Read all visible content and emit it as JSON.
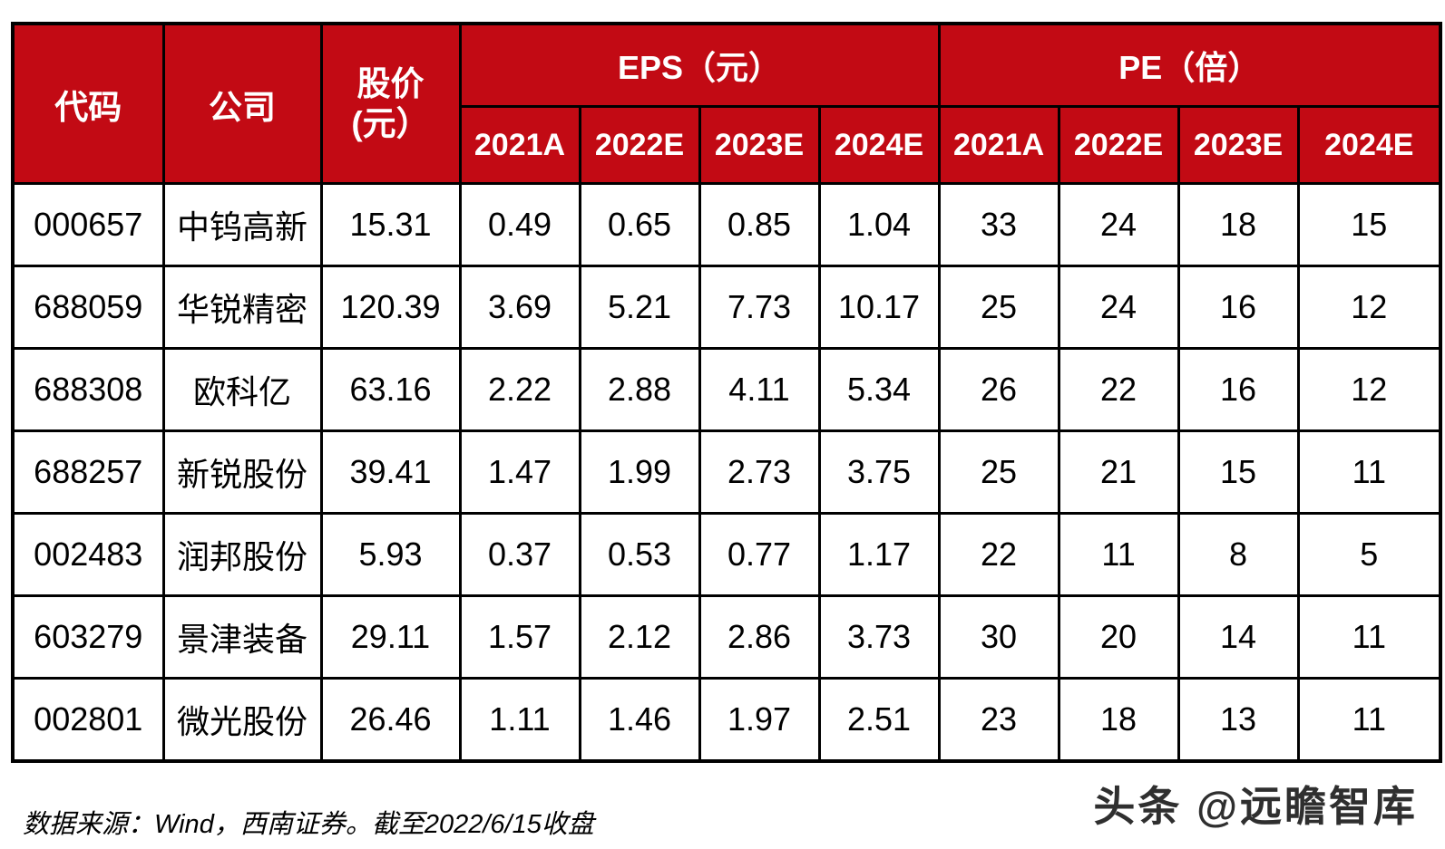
{
  "colors": {
    "header_bg": "#c20a14",
    "header_text": "#ffffff",
    "border": "#000000",
    "body_text": "#000000"
  },
  "table": {
    "headers": {
      "code": "代码",
      "company": "公司",
      "price_line1": "股价",
      "price_line2": "(元）",
      "eps_group": "EPS（元）",
      "pe_group": "PE（倍）",
      "eps_years": [
        "2021A",
        "2022E",
        "2023E",
        "2024E"
      ],
      "pe_years": [
        "2021A",
        "2022E",
        "2023E",
        "2024E"
      ]
    },
    "rows": [
      {
        "code": "000657",
        "company": "中钨高新",
        "price": "15.31",
        "eps": [
          "0.49",
          "0.65",
          "0.85",
          "1.04"
        ],
        "pe": [
          "33",
          "24",
          "18",
          "15"
        ]
      },
      {
        "code": "688059",
        "company": "华锐精密",
        "price": "120.39",
        "eps": [
          "3.69",
          "5.21",
          "7.73",
          "10.17"
        ],
        "pe": [
          "25",
          "24",
          "16",
          "12"
        ]
      },
      {
        "code": "688308",
        "company": "欧科亿",
        "price": "63.16",
        "eps": [
          "2.22",
          "2.88",
          "4.11",
          "5.34"
        ],
        "pe": [
          "26",
          "22",
          "16",
          "12"
        ]
      },
      {
        "code": "688257",
        "company": "新锐股份",
        "price": "39.41",
        "eps": [
          "1.47",
          "1.99",
          "2.73",
          "3.75"
        ],
        "pe": [
          "25",
          "21",
          "15",
          "11"
        ]
      },
      {
        "code": "002483",
        "company": "润邦股份",
        "price": "5.93",
        "eps": [
          "0.37",
          "0.53",
          "0.77",
          "1.17"
        ],
        "pe": [
          "22",
          "11",
          "8",
          "5"
        ]
      },
      {
        "code": "603279",
        "company": "景津装备",
        "price": "29.11",
        "eps": [
          "1.57",
          "2.12",
          "2.86",
          "3.73"
        ],
        "pe": [
          "30",
          "20",
          "14",
          "11"
        ]
      },
      {
        "code": "002801",
        "company": "微光股份",
        "price": "26.46",
        "eps": [
          "1.11",
          "1.46",
          "1.97",
          "2.51"
        ],
        "pe": [
          "23",
          "18",
          "13",
          "11"
        ]
      }
    ]
  },
  "footer": {
    "source_note": "数据来源：Wind，西南证券。截至2022/6/15收盘",
    "watermark": "头条 @远瞻智库"
  },
  "chart_data": {
    "type": "table",
    "title": "",
    "columns": [
      "代码",
      "公司",
      "股价(元)",
      "EPS(元) 2021A",
      "EPS(元) 2022E",
      "EPS(元) 2023E",
      "EPS(元) 2024E",
      "PE(倍) 2021A",
      "PE(倍) 2022E",
      "PE(倍) 2023E",
      "PE(倍) 2024E"
    ],
    "rows": [
      [
        "000657",
        "中钨高新",
        15.31,
        0.49,
        0.65,
        0.85,
        1.04,
        33,
        24,
        18,
        15
      ],
      [
        "688059",
        "华锐精密",
        120.39,
        3.69,
        5.21,
        7.73,
        10.17,
        25,
        24,
        16,
        12
      ],
      [
        "688308",
        "欧科亿",
        63.16,
        2.22,
        2.88,
        4.11,
        5.34,
        26,
        22,
        16,
        12
      ],
      [
        "688257",
        "新锐股份",
        39.41,
        1.47,
        1.99,
        2.73,
        3.75,
        25,
        21,
        15,
        11
      ],
      [
        "002483",
        "润邦股份",
        5.93,
        0.37,
        0.53,
        0.77,
        1.17,
        22,
        11,
        8,
        5
      ],
      [
        "603279",
        "景津装备",
        29.11,
        1.57,
        2.12,
        2.86,
        3.73,
        30,
        20,
        14,
        11
      ],
      [
        "002801",
        "微光股份",
        26.46,
        1.11,
        1.46,
        1.97,
        2.51,
        23,
        18,
        13,
        11
      ]
    ],
    "notes": "数据来源：Wind，西南证券。截至2022/6/15收盘"
  }
}
